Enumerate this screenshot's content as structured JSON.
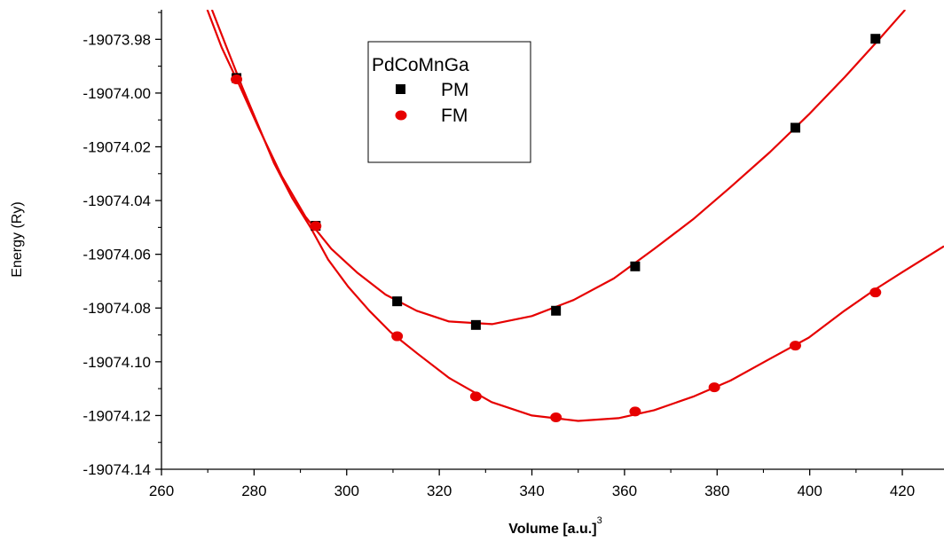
{
  "chart_data": {
    "type": "scatter",
    "xlabel": "Volume [a.u.]",
    "xlabel_superscript": "3",
    "ylabel": "Energy (Ry)",
    "xlim": [
      260,
      429
    ],
    "ylim": [
      -19074.14,
      -19073.969
    ],
    "xticks": [
      260,
      280,
      300,
      320,
      340,
      360,
      380,
      400,
      420
    ],
    "xtick_labels": [
      "260",
      "280",
      "300",
      "320",
      "340",
      "360",
      "380",
      "400",
      "420"
    ],
    "yticks": [
      -19074.14,
      -19074.12,
      -19074.1,
      -19074.08,
      -19074.06,
      -19074.04,
      -19074.02,
      -19074.0,
      -19073.98
    ],
    "ytick_labels": [
      "-19074.14",
      "-19074.12",
      "-19074.10",
      "-19074.08",
      "-19074.06",
      "-19074.04",
      "-19074.02",
      "-19074.00",
      "-19073.98"
    ],
    "grid": false,
    "legend": {
      "title": "PdCoMnGa",
      "placement": "top-center"
    },
    "series": [
      {
        "name": "PM",
        "marker": "square",
        "color": "#000000",
        "fit_color": "#e60000",
        "points": [
          [
            276.2,
            -19073.9944
          ],
          [
            293.3,
            -19074.0494
          ],
          [
            310.9,
            -19074.0775
          ],
          [
            327.9,
            -19074.0863
          ],
          [
            345.2,
            -19074.081
          ],
          [
            362.3,
            -19074.0645
          ],
          [
            396.9,
            -19074.0129
          ],
          [
            414.2,
            -19073.9798
          ]
        ],
        "fit": [
          [
            269.9,
            -19073.969
          ],
          [
            273.0,
            -19073.983
          ],
          [
            276.8,
            -19073.997
          ],
          [
            281.0,
            -19074.013
          ],
          [
            286.0,
            -19074.031
          ],
          [
            291.1,
            -19074.046
          ],
          [
            296.7,
            -19074.058
          ],
          [
            302.4,
            -19074.067
          ],
          [
            308.4,
            -19074.075
          ],
          [
            315.1,
            -19074.081
          ],
          [
            322.1,
            -19074.085
          ],
          [
            331.4,
            -19074.086
          ],
          [
            340.0,
            -19074.083
          ],
          [
            349.0,
            -19074.077
          ],
          [
            357.7,
            -19074.069
          ],
          [
            366.4,
            -19074.058
          ],
          [
            374.8,
            -19074.047
          ],
          [
            382.9,
            -19074.035
          ],
          [
            391.4,
            -19074.022
          ],
          [
            399.8,
            -19074.008
          ],
          [
            407.6,
            -19073.994
          ],
          [
            415.0,
            -19073.98
          ],
          [
            420.6,
            -19073.969
          ]
        ]
      },
      {
        "name": "FM",
        "marker": "circle",
        "color": "#e60000",
        "fit_color": "#e60000",
        "points": [
          [
            276.2,
            -19073.9949
          ],
          [
            293.3,
            -19074.0495
          ],
          [
            310.9,
            -19074.0905
          ],
          [
            327.9,
            -19074.1129
          ],
          [
            345.2,
            -19074.1207
          ],
          [
            362.3,
            -19074.1185
          ],
          [
            379.4,
            -19074.1095
          ],
          [
            396.9,
            -19074.094
          ],
          [
            414.2,
            -19074.0742
          ]
        ],
        "fit": [
          [
            270.9,
            -19073.969
          ],
          [
            274.3,
            -19073.984
          ],
          [
            277.5,
            -19073.998
          ],
          [
            280.9,
            -19074.012
          ],
          [
            284.3,
            -19074.026
          ],
          [
            288.2,
            -19074.039
          ],
          [
            292.2,
            -19074.05
          ],
          [
            296.0,
            -19074.062
          ],
          [
            300.3,
            -19074.072
          ],
          [
            304.9,
            -19074.081
          ],
          [
            309.5,
            -19074.089
          ],
          [
            315.3,
            -19074.097
          ],
          [
            322.1,
            -19074.106
          ],
          [
            331.3,
            -19074.115
          ],
          [
            340.0,
            -19074.12
          ],
          [
            350.0,
            -19074.122
          ],
          [
            358.7,
            -19074.121
          ],
          [
            366.4,
            -19074.118
          ],
          [
            374.8,
            -19074.113
          ],
          [
            382.9,
            -19074.107
          ],
          [
            391.3,
            -19074.099
          ],
          [
            399.8,
            -19074.091
          ],
          [
            407.5,
            -19074.081
          ],
          [
            414.2,
            -19074.073
          ],
          [
            420.6,
            -19074.066
          ],
          [
            429.0,
            -19074.057
          ]
        ]
      }
    ]
  }
}
